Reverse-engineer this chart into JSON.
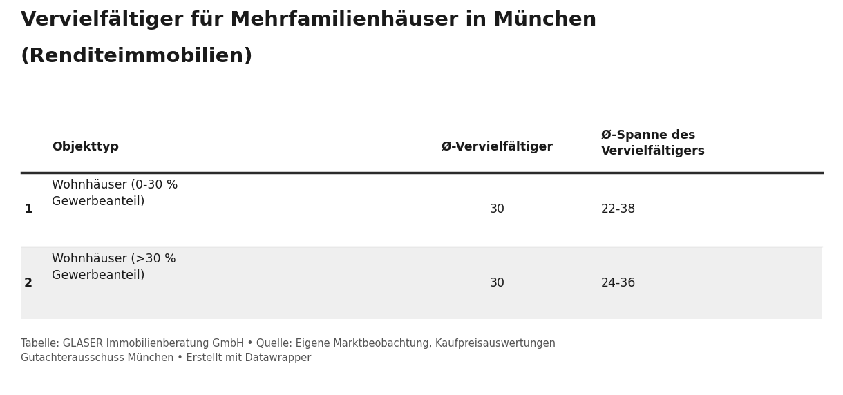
{
  "title_line1": "Vervielfältiger für Mehrfamilienhäuser in München",
  "title_line2": "(Renditeimmobilien)",
  "title_fontsize": 21,
  "title_fontweight": "bold",
  "col_headers": [
    "Objekttyp",
    "Ø-Vervielfältiger",
    "Ø-Spanne des\nVervielfältigers"
  ],
  "col_header_fontsize": 12.5,
  "col_header_fontweight": "bold",
  "rows": [
    [
      "1",
      "Wohnhäuser (0-30 %\nGewerbeanteil)",
      "30",
      "22-38"
    ],
    [
      "2",
      "Wohnhäuser (>30 %\nGewerbeanteil)",
      "30",
      "24-36"
    ]
  ],
  "row_fontsize": 12.5,
  "footnote": "Tabelle: GLASER Immobilienberatung GmbH • Quelle: Eigene Marktbeobachtung, Kaufpreisauswertungen\nGutachterausschuss München • Erstellt mit Datawrapper",
  "footnote_fontsize": 10.5,
  "background_color": "#ffffff",
  "header_line_color": "#2b2b2b",
  "row_divider_color": "#cccccc",
  "row_bg_1": "#ffffff",
  "row_bg_2": "#efefef",
  "text_color": "#1a1a1a",
  "footnote_color": "#555555"
}
